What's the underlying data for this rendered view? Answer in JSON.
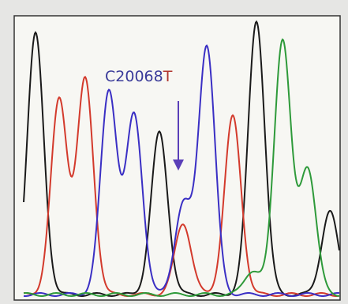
{
  "annotation": {
    "ref_base": "C",
    "position": "20068",
    "alt_base": "T",
    "ref_color": "#3b3c9a",
    "position_color": "#3b3c9a",
    "alt_color": "#b0352e",
    "arrow_color": "#5a3fb8"
  },
  "colors": {
    "black": "#1a1a1a",
    "red": "#d33a2c",
    "blue": "#3a2fc4",
    "green": "#2e9a3a",
    "background": "#f7f7f3",
    "frame": "#333333"
  },
  "chart_data": {
    "type": "line",
    "peak_series": [
      {
        "color": "black",
        "peaks": [
          [
            45,
            45
          ],
          [
            202,
            170
          ],
          [
            325,
            28
          ],
          [
            418,
            270
          ]
        ]
      },
      {
        "color": "red",
        "peaks": [
          [
            75,
            128
          ],
          [
            108,
            103
          ],
          [
            232,
            285
          ],
          [
            295,
            150
          ]
        ]
      },
      {
        "color": "blue",
        "peaks": [
          [
            138,
            117
          ],
          [
            170,
            148
          ],
          [
            232,
            262
          ],
          [
            262,
            60
          ]
        ]
      },
      {
        "color": "green",
        "peaks": [
          [
            358,
            52
          ],
          [
            390,
            215
          ],
          [
            320,
            345
          ]
        ]
      }
    ],
    "peak_width": 10.5,
    "baseline_y": 375
  }
}
